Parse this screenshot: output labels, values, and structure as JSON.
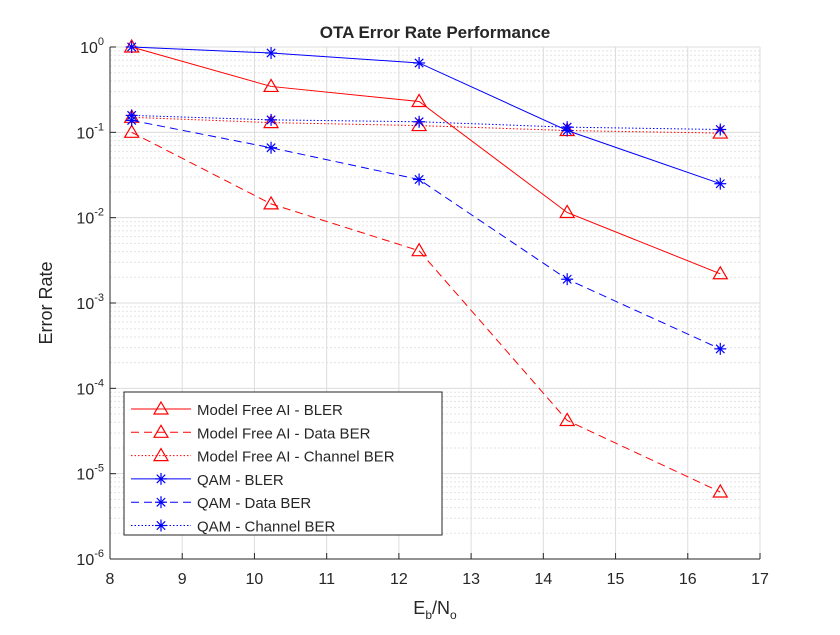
{
  "chart_data": {
    "type": "line",
    "title": "OTA Error Rate Performance",
    "xlabel": "E_b/N_o",
    "xlabel_parts": {
      "main1": "E",
      "sub1": "b",
      "sep": "/N",
      "sub2": "o"
    },
    "ylabel": "Error Rate",
    "xlim": [
      8,
      17
    ],
    "ylim": [
      1e-06,
      1
    ],
    "yscale": "log",
    "xticks": [
      "8",
      "9",
      "10",
      "11",
      "12",
      "13",
      "14",
      "15",
      "16",
      "17"
    ],
    "yticks": [
      {
        "base": "10",
        "exp": "0"
      },
      {
        "base": "10",
        "exp": "-1"
      },
      {
        "base": "10",
        "exp": "-2"
      },
      {
        "base": "10",
        "exp": "-3"
      },
      {
        "base": "10",
        "exp": "-4"
      },
      {
        "base": "10",
        "exp": "-5"
      },
      {
        "base": "10",
        "exp": "-6"
      }
    ],
    "grid": true,
    "minor_grid": true,
    "legend_position": "bottom-left",
    "x": [
      8.3,
      10.23,
      12.28,
      14.33,
      16.45
    ],
    "series": [
      {
        "name": "Model Free AI - BLER",
        "color": "#ff0000",
        "style": "solid",
        "marker": "triangle",
        "values": [
          1.0,
          0.345,
          0.23,
          0.0115,
          0.0022
        ]
      },
      {
        "name": "Model Free AI - Data BER",
        "color": "#ff0000",
        "style": "dashed",
        "marker": "triangle",
        "values": [
          0.1,
          0.0145,
          0.0041,
          4.2e-05,
          6.1e-06
        ]
      },
      {
        "name": "Model Free AI - Channel BER",
        "color": "#ff0000",
        "style": "dotted",
        "marker": "triangle",
        "values": [
          0.15,
          0.13,
          0.12,
          0.105,
          0.098
        ]
      },
      {
        "name": "QAM - BLER",
        "color": "#0000ff",
        "style": "solid",
        "marker": "asterisk",
        "values": [
          1.0,
          0.85,
          0.65,
          0.105,
          0.025
        ]
      },
      {
        "name": "QAM - Data BER",
        "color": "#0000ff",
        "style": "dashed",
        "marker": "asterisk",
        "values": [
          0.138,
          0.066,
          0.028,
          0.0019,
          0.00029
        ]
      },
      {
        "name": "QAM - Channel BER",
        "color": "#0000ff",
        "style": "dotted",
        "marker": "asterisk",
        "values": [
          0.158,
          0.14,
          0.133,
          0.115,
          0.108
        ]
      }
    ]
  }
}
